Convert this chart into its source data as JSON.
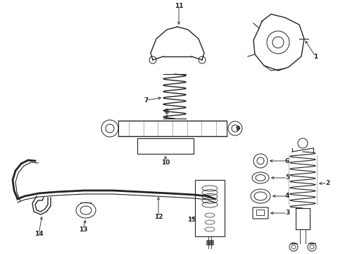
{
  "bg_color": "#ffffff",
  "line_color": "#222222",
  "lw": 0.7,
  "figsize": [
    4.9,
    3.6
  ],
  "dpi": 100,
  "xlim": [
    0,
    490
  ],
  "ylim": [
    0,
    360
  ]
}
